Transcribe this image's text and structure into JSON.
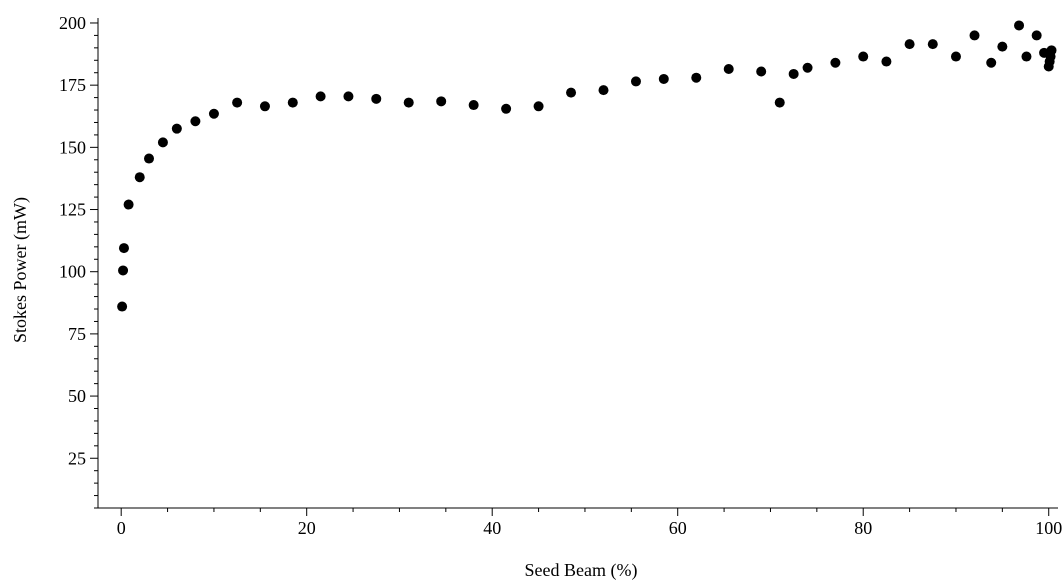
{
  "chart_data": {
    "type": "scatter",
    "title": "",
    "xlabel": "Seed Beam (%)",
    "ylabel": "Stokes Power (mW)",
    "xlim": [
      -2.5,
      101
    ],
    "ylim": [
      5,
      202
    ],
    "x_major_ticks": [
      0,
      20,
      40,
      60,
      80,
      100
    ],
    "x_minor_step": 5,
    "y_major_ticks": [
      25,
      50,
      75,
      100,
      125,
      150,
      175,
      200
    ],
    "y_minor_step": 5,
    "grid": false,
    "legend": "none",
    "marker_color": "#000000",
    "series": [
      {
        "points": [
          [
            0.1,
            86
          ],
          [
            0.2,
            100.5
          ],
          [
            0.3,
            109.5
          ],
          [
            0.8,
            127
          ],
          [
            2.0,
            138
          ],
          [
            3.0,
            145.5
          ],
          [
            4.5,
            152
          ],
          [
            6.0,
            157.5
          ],
          [
            8.0,
            160.5
          ],
          [
            10.0,
            163.5
          ],
          [
            12.5,
            168
          ],
          [
            15.5,
            166.5
          ],
          [
            18.5,
            168
          ],
          [
            21.5,
            170.5
          ],
          [
            24.5,
            170.5
          ],
          [
            27.5,
            169.5
          ],
          [
            31.0,
            168
          ],
          [
            34.5,
            168.5
          ],
          [
            38.0,
            167
          ],
          [
            41.5,
            165.5
          ],
          [
            45.0,
            166.5
          ],
          [
            48.5,
            172
          ],
          [
            52.0,
            173
          ],
          [
            55.5,
            176.5
          ],
          [
            58.5,
            177.5
          ],
          [
            62.0,
            178
          ],
          [
            65.5,
            181.5
          ],
          [
            69.0,
            180.5
          ],
          [
            72.5,
            179.5
          ],
          [
            71.0,
            168
          ],
          [
            74.0,
            182
          ],
          [
            77.0,
            184
          ],
          [
            80.0,
            186.5
          ],
          [
            82.5,
            184.5
          ],
          [
            85.0,
            191.5
          ],
          [
            87.5,
            191.5
          ],
          [
            90.0,
            186.5
          ],
          [
            92.0,
            195
          ],
          [
            93.8,
            184
          ],
          [
            95.0,
            190.5
          ],
          [
            96.8,
            199
          ],
          [
            97.6,
            186.5
          ],
          [
            98.7,
            195
          ],
          [
            99.5,
            188
          ],
          [
            100.0,
            182.5
          ],
          [
            100.1,
            184.5
          ],
          [
            100.2,
            186.5
          ],
          [
            100.3,
            189
          ]
        ]
      }
    ]
  }
}
